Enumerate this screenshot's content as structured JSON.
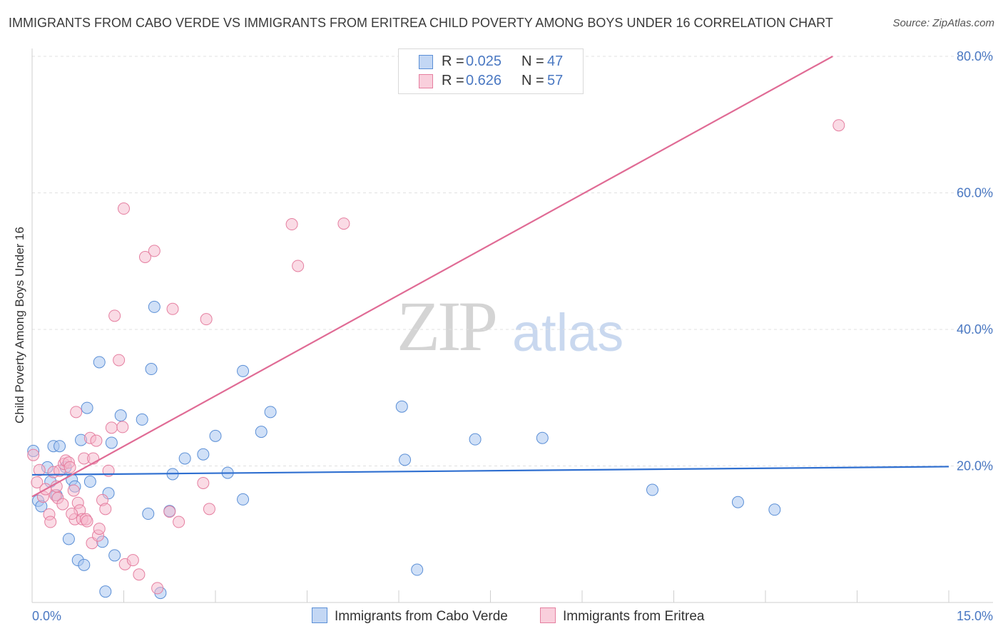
{
  "header": {
    "title": "IMMIGRANTS FROM CABO VERDE VS IMMIGRANTS FROM ERITREA CHILD POVERTY AMONG BOYS UNDER 16 CORRELATION CHART",
    "source": "Source: ZipAtlas.com"
  },
  "watermark": {
    "zip": "ZIP",
    "atlas": "atlas"
  },
  "legend_top": {
    "r_label": "R =",
    "n_label": "N =",
    "rows": [
      {
        "r": "0.025",
        "n": "47"
      },
      {
        "r": "0.626",
        "n": "57"
      }
    ]
  },
  "chart_data": {
    "type": "scatter",
    "title": "IMMIGRANTS FROM CABO VERDE VS IMMIGRANTS FROM ERITREA CHILD POVERTY AMONG BOYS UNDER 16 CORRELATION CHART",
    "xlabel": "",
    "ylabel": "Child Poverty Among Boys Under 16",
    "xlim": [
      0,
      15
    ],
    "ylim": [
      0,
      80
    ],
    "x_tick_labels": [
      "0.0%",
      "15.0%"
    ],
    "y_ticks": [
      20,
      40,
      60,
      80
    ],
    "y_tick_labels": [
      "20.0%",
      "40.0%",
      "60.0%",
      "80.0%"
    ],
    "grid": true,
    "legend_position": "top-center",
    "colors": {
      "cabo_fill": "#a9c6f0",
      "cabo_stroke": "#5b8fd6",
      "cabo_line": "#2f6fd0",
      "eritrea_fill": "#f6b7cb",
      "eritrea_stroke": "#e57fa0",
      "eritrea_line": "#e06b95"
    },
    "series": [
      {
        "name": "Immigrants from Cabo Verde",
        "r": 0.025,
        "n": 47,
        "trend": {
          "x": [
            0,
            15
          ],
          "y": [
            18.7,
            19.9
          ]
        },
        "points": [
          [
            0.02,
            22.2
          ],
          [
            0.1,
            14.9
          ],
          [
            0.15,
            14.1
          ],
          [
            0.25,
            19.8
          ],
          [
            0.3,
            17.7
          ],
          [
            0.35,
            22.9
          ],
          [
            0.4,
            15.7
          ],
          [
            0.45,
            22.9
          ],
          [
            0.6,
            9.3
          ],
          [
            0.65,
            18.0
          ],
          [
            0.7,
            17.0
          ],
          [
            0.75,
            6.2
          ],
          [
            0.8,
            23.8
          ],
          [
            0.85,
            5.5
          ],
          [
            0.9,
            28.5
          ],
          [
            0.95,
            17.7
          ],
          [
            1.1,
            35.2
          ],
          [
            1.15,
            8.9
          ],
          [
            1.2,
            1.6
          ],
          [
            1.25,
            16.0
          ],
          [
            1.3,
            23.4
          ],
          [
            1.35,
            6.9
          ],
          [
            1.45,
            27.4
          ],
          [
            1.8,
            26.8
          ],
          [
            1.9,
            13.0
          ],
          [
            1.95,
            34.2
          ],
          [
            2.0,
            43.3
          ],
          [
            2.1,
            1.4
          ],
          [
            2.25,
            13.4
          ],
          [
            2.3,
            18.8
          ],
          [
            2.5,
            21.1
          ],
          [
            2.8,
            21.7
          ],
          [
            3.0,
            24.4
          ],
          [
            3.2,
            19.0
          ],
          [
            3.45,
            33.9
          ],
          [
            3.45,
            15.1
          ],
          [
            3.75,
            25.0
          ],
          [
            3.9,
            27.9
          ],
          [
            6.05,
            28.7
          ],
          [
            6.1,
            20.9
          ],
          [
            6.3,
            4.8
          ],
          [
            7.25,
            23.9
          ],
          [
            8.35,
            24.1
          ],
          [
            10.15,
            16.5
          ],
          [
            11.55,
            14.7
          ],
          [
            12.15,
            13.6
          ],
          [
            0.55,
            19.8
          ]
        ]
      },
      {
        "name": "Immigrants from Eritrea",
        "r": 0.626,
        "n": 57,
        "trend": {
          "x": [
            0,
            13.1
          ],
          "y": [
            15.5,
            80
          ]
        },
        "points": [
          [
            0.02,
            21.6
          ],
          [
            0.08,
            17.6
          ],
          [
            0.12,
            19.4
          ],
          [
            0.18,
            15.5
          ],
          [
            0.22,
            16.6
          ],
          [
            0.28,
            12.9
          ],
          [
            0.3,
            11.8
          ],
          [
            0.35,
            19.1
          ],
          [
            0.38,
            15.7
          ],
          [
            0.42,
            15.3
          ],
          [
            0.45,
            19.3
          ],
          [
            0.5,
            14.4
          ],
          [
            0.52,
            20.3
          ],
          [
            0.55,
            20.8
          ],
          [
            0.6,
            20.5
          ],
          [
            0.62,
            19.8
          ],
          [
            0.68,
            16.4
          ],
          [
            0.7,
            12.2
          ],
          [
            0.72,
            27.9
          ],
          [
            0.75,
            14.6
          ],
          [
            0.78,
            13.5
          ],
          [
            0.82,
            12.2
          ],
          [
            0.85,
            21.1
          ],
          [
            0.88,
            12.2
          ],
          [
            0.9,
            11.9
          ],
          [
            0.95,
            24.1
          ],
          [
            0.98,
            8.7
          ],
          [
            1.0,
            21.1
          ],
          [
            1.05,
            23.7
          ],
          [
            1.08,
            9.8
          ],
          [
            1.1,
            10.8
          ],
          [
            1.15,
            15.0
          ],
          [
            1.2,
            13.7
          ],
          [
            1.25,
            19.3
          ],
          [
            1.3,
            25.6
          ],
          [
            1.35,
            42.0
          ],
          [
            1.42,
            35.5
          ],
          [
            1.48,
            25.7
          ],
          [
            1.5,
            57.7
          ],
          [
            1.52,
            5.6
          ],
          [
            1.65,
            6.2
          ],
          [
            1.75,
            4.1
          ],
          [
            1.85,
            50.6
          ],
          [
            2.0,
            51.5
          ],
          [
            2.05,
            2.1
          ],
          [
            2.25,
            13.3
          ],
          [
            2.3,
            43.0
          ],
          [
            2.4,
            11.8
          ],
          [
            2.8,
            17.5
          ],
          [
            2.85,
            41.5
          ],
          [
            2.9,
            13.7
          ],
          [
            4.25,
            55.4
          ],
          [
            4.35,
            49.3
          ],
          [
            5.1,
            55.5
          ],
          [
            13.2,
            69.9
          ],
          [
            0.4,
            17.0
          ],
          [
            0.65,
            13.0
          ]
        ]
      }
    ]
  }
}
